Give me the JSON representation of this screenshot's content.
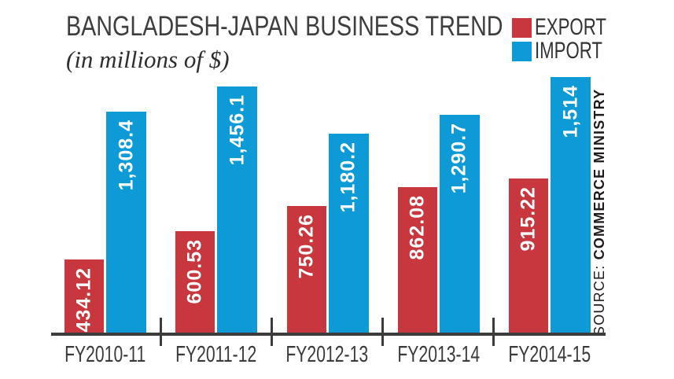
{
  "title": "BANGLADESH-JAPAN BUSINESS TREND",
  "subtitle": "(in millions of $)",
  "legend": {
    "items": [
      {
        "label": "EXPORT",
        "color": "#c7373d"
      },
      {
        "label": "IMPORT",
        "color": "#0e9ad7"
      }
    ]
  },
  "source": {
    "prefix": "SOURCE: ",
    "name": "COMMERCE MINISTRY"
  },
  "chart_data": {
    "type": "bar",
    "title": "BANGLADESH-JAPAN BUSINESS TREND",
    "unit_note": "(in millions of $)",
    "categories": [
      "FY2010-11",
      "FY2011-12",
      "FY2012-13",
      "FY2013-14",
      "FY2014-15"
    ],
    "series": [
      {
        "name": "EXPORT",
        "color": "#c7373d",
        "values": [
          434.12,
          600.53,
          750.26,
          862.08,
          915.22
        ],
        "value_labels": [
          "434.12",
          "600.53",
          "750.26",
          "862.08",
          "915.22"
        ]
      },
      {
        "name": "IMPORT",
        "color": "#0e9ad7",
        "values": [
          1308.4,
          1456.1,
          1180.2,
          1290.7,
          1514
        ],
        "value_labels": [
          "1,308.4",
          "1,456.1",
          "1,180.2",
          "1,290.7",
          "1,514"
        ]
      }
    ],
    "ylim": [
      0,
      1550
    ],
    "grid": false,
    "legend_position": "top-right",
    "value_label_position": "inside-top-rotated",
    "value_label_color": "#ffffff",
    "axis_color": "#3b3b3b"
  }
}
